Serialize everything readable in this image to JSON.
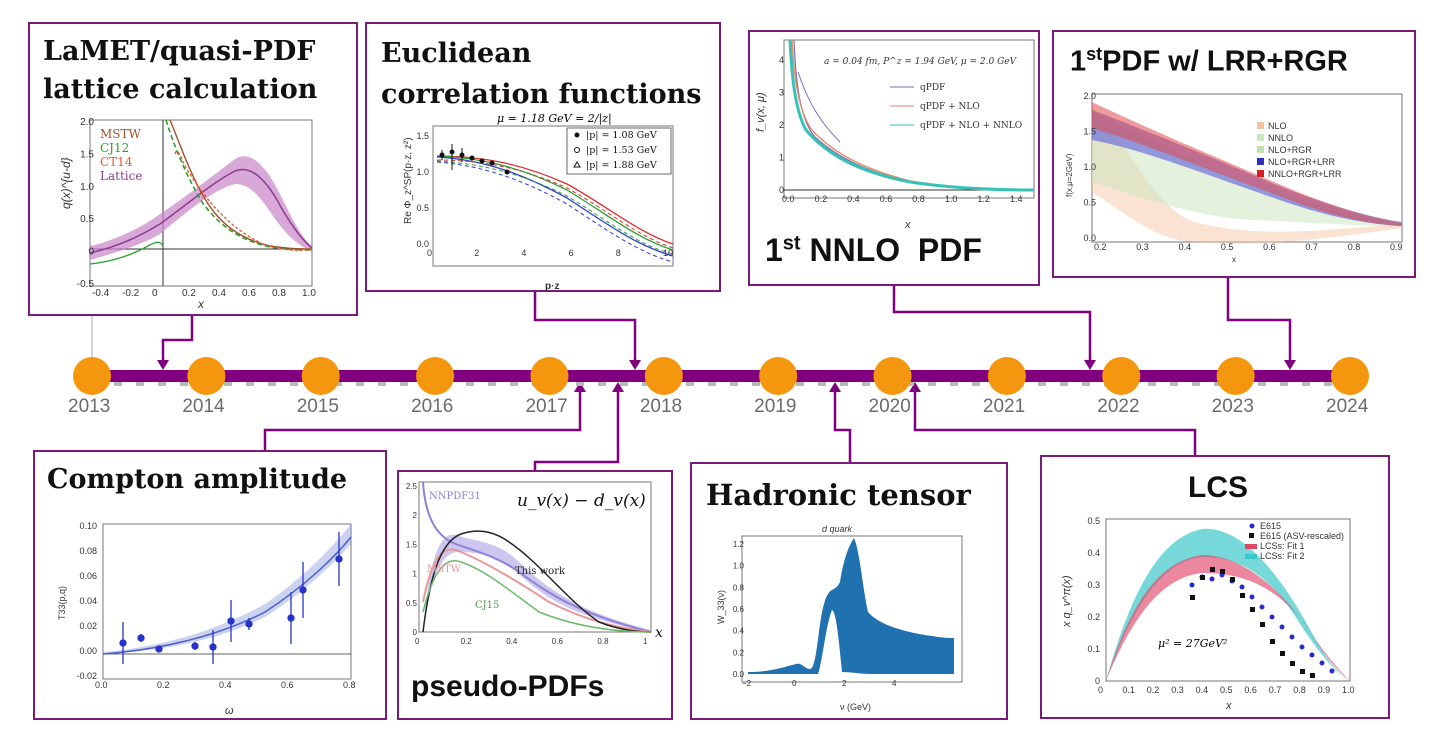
{
  "timeline": {
    "years": [
      "2013",
      "2014",
      "2015",
      "2016",
      "2017",
      "2018",
      "2019",
      "2020",
      "2021",
      "2022",
      "2023",
      "2024"
    ],
    "line_color": "#800080",
    "dot_color": "#f5960f"
  },
  "panels": {
    "lamet": {
      "title_line1": "LaMET/quasi-PDF",
      "title_line2": "lattice calculation",
      "ylabel": "q(x)^{u-d}",
      "xlabel": "x",
      "legend": [
        "MSTW",
        "CJ12",
        "CT14",
        "Lattice"
      ],
      "xticks": [
        "-0.4",
        "-0.2",
        "0",
        "0.2",
        "0.4",
        "0.6",
        "0.8",
        "1.0"
      ],
      "yticks": [
        "2.0",
        "1.5",
        "1.0",
        "0.5",
        "0",
        "-0.5"
      ]
    },
    "euclidean": {
      "title_line1": "Euclidean",
      "title_line2": "correlation functions",
      "plot_title": "μ = 1.18 GeV = 2/|z|",
      "legend": [
        "|p| = 1.08 GeV",
        "|p| = 1.53 GeV",
        "|p| = 1.88 GeV"
      ],
      "ylabel": "Re Φ_z^SP(p·z, z²)",
      "xlabel": "p·z",
      "xticks": [
        "0",
        "2",
        "4",
        "6",
        "8",
        "10"
      ],
      "yticks": [
        "1.5",
        "1.0",
        "0.5",
        "0.0"
      ]
    },
    "nnlo": {
      "caption": "1st NNLO  PDF",
      "caption_sup": "st",
      "caption_pre": "1",
      "caption_post": " NNLO  PDF",
      "info": "a = 0.04 fm, P^z = 1.94 GeV, μ = 2.0 GeV",
      "legend": [
        "qPDF",
        "qPDF + NLO",
        "qPDF + NLO + NNLO"
      ],
      "ylabel": "f_v(x, μ)",
      "xlabel": "x",
      "xticks": [
        "0.0",
        "0.2",
        "0.4",
        "0.6",
        "0.8",
        "1.0",
        "1.2",
        "1.4"
      ],
      "yticks": [
        "4",
        "3",
        "2",
        "1",
        "0"
      ]
    },
    "lrr": {
      "title_pre": "1",
      "title_sup": "st",
      "title_post": "PDF w/ LRR+RGR",
      "legend": [
        "NLO",
        "NNLO",
        "NLO+RGR",
        "NLO+RGR+LRR",
        "NNLO+RGR+LRR"
      ],
      "ylabel": "f(x,μ=2GeV)",
      "xlabel": "x",
      "xticks": [
        "0.2",
        "0.3",
        "0.4",
        "0.5",
        "0.6",
        "0.7",
        "0.8",
        "0.9"
      ],
      "yticks": [
        "2.0",
        "1.5",
        "1.0",
        "0.5",
        "0.0"
      ]
    },
    "compton": {
      "title": "Compton amplitude",
      "ylabel": "T33(p,q)",
      "xlabel": "ω",
      "xticks": [
        "0.0",
        "0.2",
        "0.4",
        "0.6",
        "0.8"
      ],
      "yticks": [
        "0.10",
        "0.08",
        "0.06",
        "0.04",
        "0.02",
        "0.00",
        "-0.02"
      ]
    },
    "pseudo": {
      "title": "pseudo-PDFs",
      "formula": "u_v(x) − d_v(x)",
      "labels": [
        "NNPDF31",
        "MSTW",
        "This work",
        "CJ15"
      ],
      "xaxis_label": "x",
      "xticks": [
        "0",
        "0.2",
        "0.4",
        "0.6",
        "0.8",
        "1"
      ],
      "yticks": [
        "2.5",
        "2",
        "1.5",
        "1",
        "0.5",
        "0"
      ]
    },
    "hadronic": {
      "title": "Hadronic tensor",
      "plot_title": "d quark",
      "ylabel": "W_33(ν)",
      "xlabel": "ν (GeV)",
      "xticks": [
        "−2",
        "0",
        "2",
        "4"
      ],
      "yticks": [
        "1.2",
        "1.0",
        "0.8",
        "0.6",
        "0.4",
        "0.2",
        "0.0"
      ]
    },
    "lcs": {
      "title": "LCS",
      "legend": [
        "E615",
        "E615 (ASV-rescaled)",
        "LCSs: Fit 1",
        "LCSs: Fit 2"
      ],
      "scale": "μ² = 27GeV²",
      "ylabel": "x q_v^π(x)",
      "xlabel": "x",
      "xticks": [
        "0",
        "0.1",
        "0.2",
        "0.3",
        "0.4",
        "0.5",
        "0.6",
        "0.7",
        "0.8",
        "0.9",
        "1.0"
      ],
      "yticks": [
        "0.5",
        "0.4",
        "0.3",
        "0.2",
        "0.1",
        "0"
      ]
    }
  }
}
